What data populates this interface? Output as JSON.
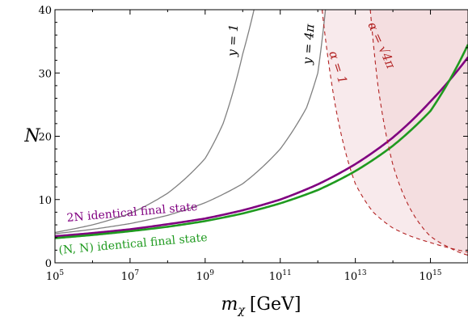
{
  "chart_data": {
    "type": "line",
    "title": "",
    "xlabel": "m_χ [GeV]",
    "xlabel_symbol": "m",
    "xlabel_sub": "χ",
    "xlabel_unit": "[GeV]",
    "ylabel": "N",
    "xscale": "log",
    "xlim": [
      100000,
      1e+16
    ],
    "ylim": [
      0,
      40
    ],
    "x_ticks": [
      {
        "base": "10",
        "exp": "5",
        "value": 100000.0
      },
      {
        "base": "10",
        "exp": "7",
        "value": 10000000.0
      },
      {
        "base": "10",
        "exp": "9",
        "value": 1000000000.0
      },
      {
        "base": "10",
        "exp": "11",
        "value": 100000000000.0
      },
      {
        "base": "10",
        "exp": "13",
        "value": 10000000000000.0
      },
      {
        "base": "10",
        "exp": "15",
        "value": 1000000000000000.0
      }
    ],
    "y_ticks": [
      "0",
      "10",
      "20",
      "30",
      "40"
    ],
    "grid": false,
    "series": [
      {
        "name": "y = 1",
        "color": "#808080",
        "x": [
          100000.0,
          1000000.0,
          10000000.0,
          100000000.0,
          1000000000.0,
          3000000000.0,
          10000000000.0,
          20000000000.0
        ],
        "y": [
          4.8,
          6.0,
          7.8,
          11.0,
          16.5,
          22.0,
          33.0,
          40.0
        ]
      },
      {
        "name": "y = 4π",
        "color": "#808080",
        "x": [
          100000.0,
          1000000.0,
          10000000.0,
          100000000.0,
          1000000000.0,
          10000000000.0,
          100000000000.0,
          500000000000.0,
          1000000000000.0,
          1600000000000.0
        ],
        "y": [
          4.6,
          5.3,
          6.2,
          7.5,
          9.5,
          12.5,
          18.0,
          24.5,
          30.0,
          40.0
        ]
      },
      {
        "name": "2N identical final state",
        "color": "#800080",
        "x": [
          100000.0,
          1000000.0,
          10000000.0,
          100000000.0,
          1000000000.0,
          10000000000.0,
          100000000000.0,
          1000000000000.0,
          10000000000000.0,
          100000000000000.0,
          1000000000000000.0,
          1e+16
        ],
        "y": [
          4.2,
          4.7,
          5.3,
          6.1,
          7.0,
          8.3,
          10.0,
          12.4,
          15.6,
          19.8,
          25.5,
          32.5
        ]
      },
      {
        "name": "(N, N) identical final state",
        "color": "#1f9a1f",
        "x": [
          100000.0,
          1000000.0,
          10000000.0,
          100000000.0,
          1000000000.0,
          10000000000.0,
          100000000000.0,
          1000000000000.0,
          10000000000000.0,
          100000000000000.0,
          1000000000000000.0,
          1e+16
        ],
        "y": [
          3.9,
          4.4,
          5.0,
          5.7,
          6.6,
          7.8,
          9.4,
          11.5,
          14.5,
          18.5,
          24.0,
          34.5
        ]
      },
      {
        "name": "α = 1",
        "color": "#b22222",
        "style": "dashed",
        "x": [
          1300000000000.0,
          3000000000000.0,
          10000000000000.0,
          30000000000000.0,
          100000000000000.0,
          300000000000000.0,
          1000000000000000.0,
          3000000000000000.0,
          1e+16
        ],
        "y": [
          40.0,
          24.5,
          12.5,
          8.0,
          5.5,
          4.2,
          3.2,
          2.4,
          1.7
        ]
      },
      {
        "name": "α = √4π",
        "color": "#b22222",
        "style": "dashed",
        "x": [
          25000000000000.0,
          40000000000000.0,
          70000000000000.0,
          100000000000000.0,
          200000000000000.0,
          500000000000000.0,
          1000000000000000.0,
          3000000000000000.0,
          1e+16
        ],
        "y": [
          40.0,
          28.0,
          19.5,
          15.5,
          10.5,
          6.3,
          4.2,
          2.5,
          1.2
        ]
      }
    ],
    "annotations": {
      "y1": "y = 1",
      "y4pi": "y = 4π",
      "alpha1": "α = 1",
      "alpha_sqrt": "α = √4π",
      "label_2n": "2N identical final state",
      "label_nn": "(N, N) identical final state"
    },
    "shading_color": "#f3d9dc"
  }
}
